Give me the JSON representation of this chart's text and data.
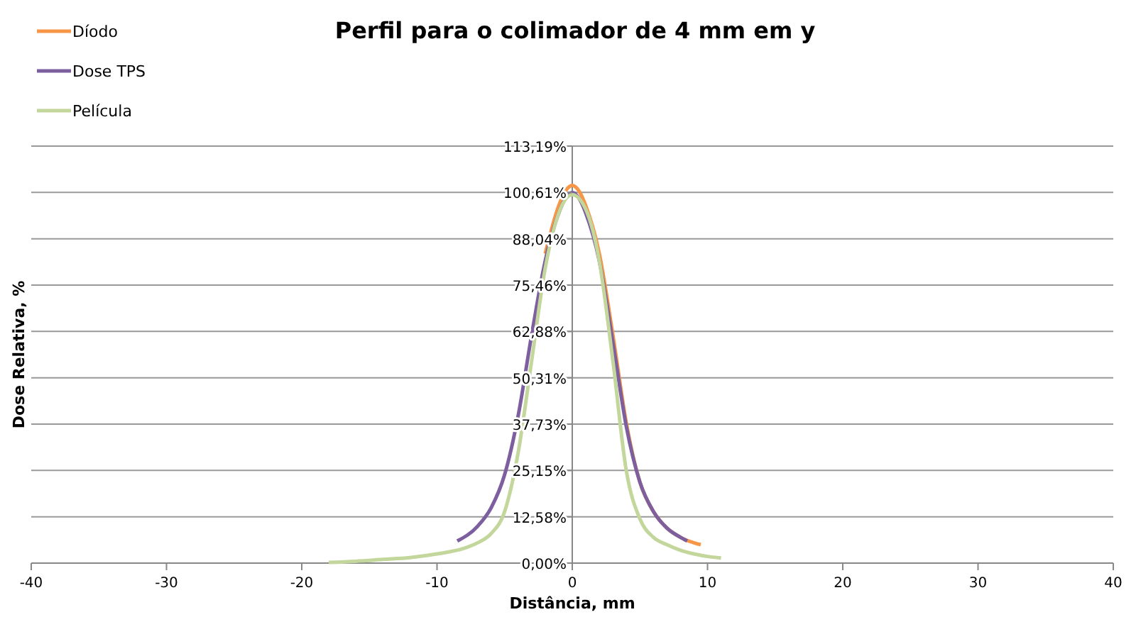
{
  "chart_data": {
    "type": "line",
    "title": "Perfil para o colimador de 4 mm em y",
    "xlabel": "Distância, mm",
    "ylabel": "Dose Relativa, %",
    "xlim": [
      -40,
      40
    ],
    "xticks": [
      -40,
      -30,
      -20,
      -10,
      0,
      10,
      20,
      30,
      40
    ],
    "ylim": [
      0,
      113.19
    ],
    "yticks": [
      {
        "value": 0,
        "label": "0,00%"
      },
      {
        "value": 12.58,
        "label": "12,58%"
      },
      {
        "value": 25.15,
        "label": "25,15%"
      },
      {
        "value": 37.73,
        "label": "37,73%"
      },
      {
        "value": 50.31,
        "label": "50,31%"
      },
      {
        "value": 62.88,
        "label": "62,88%"
      },
      {
        "value": 75.46,
        "label": "75,46%"
      },
      {
        "value": 88.04,
        "label": "88,04%"
      },
      {
        "value": 100.61,
        "label": "100,61%"
      },
      {
        "value": 113.19,
        "label": "113,19%"
      }
    ],
    "grid": "y",
    "legend": "top left",
    "marker": "none",
    "line_style": "solid",
    "series": [
      {
        "name": "Díodo",
        "color": "#f79646",
        "x": [
          -2,
          -1,
          -0.5,
          0,
          0.5,
          1,
          2,
          3,
          4,
          5,
          6,
          7,
          8,
          9,
          9.5
        ],
        "values": [
          84,
          97,
          101,
          102.5,
          101,
          97,
          84,
          62,
          38,
          22,
          14,
          9.5,
          7,
          5.5,
          5
        ]
      },
      {
        "name": "Dose TPS",
        "color": "#7d5fa0",
        "x": [
          -8.5,
          -7,
          -6,
          -5,
          -4,
          -3,
          -2,
          -1,
          -0.5,
          0,
          0.5,
          1,
          2,
          3,
          4,
          5,
          6,
          7,
          8,
          8.5
        ],
        "values": [
          6,
          10,
          15,
          24,
          40,
          62,
          82,
          95,
          99,
          100.6,
          99,
          95,
          82,
          60,
          37,
          22,
          14,
          9.5,
          7,
          6
        ]
      },
      {
        "name": "Película",
        "color": "#c3d69b",
        "x": [
          -18,
          -16,
          -14,
          -12,
          -10,
          -8,
          -7,
          -6,
          -5,
          -4,
          -3,
          -2,
          -1,
          0,
          1,
          2,
          3,
          4,
          5,
          6,
          7,
          8,
          9,
          10,
          11
        ],
        "values": [
          0.2,
          0.5,
          1,
          1.5,
          2.5,
          4,
          5.5,
          8,
          14,
          30,
          55,
          80,
          95,
          100,
          96,
          82,
          55,
          25,
          12,
          7,
          5,
          3.5,
          2.5,
          1.8,
          1.4
        ]
      }
    ]
  }
}
